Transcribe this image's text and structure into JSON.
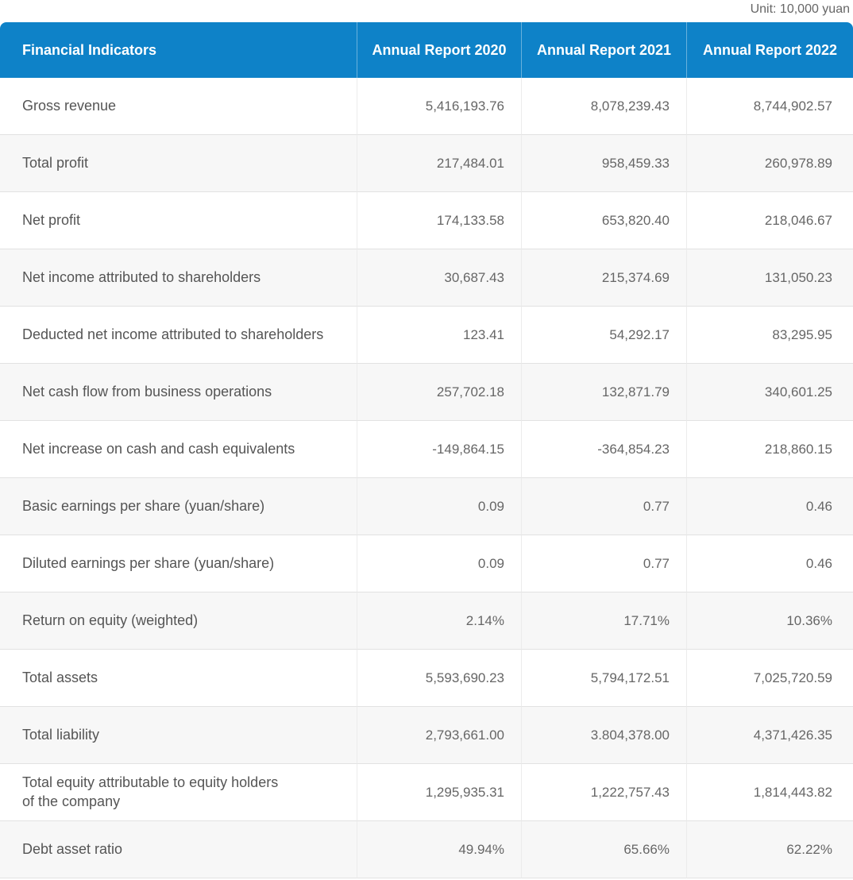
{
  "chart_data": {
    "type": "table",
    "unit_label": "Unit: 10,000 yuan",
    "columns": [
      "Financial Indicators",
      "Annual Report 2020",
      "Annual Report 2021",
      "Annual Report 2022"
    ],
    "rows": [
      {
        "indicator": "Gross revenue",
        "values": [
          "5,416,193.76",
          "8,078,239.43",
          "8,744,902.57"
        ]
      },
      {
        "indicator": "Total profit",
        "values": [
          "217,484.01",
          "958,459.33",
          "260,978.89"
        ]
      },
      {
        "indicator": "Net profit",
        "values": [
          "174,133.58",
          "653,820.40",
          "218,046.67"
        ]
      },
      {
        "indicator": "Net income attributed to shareholders",
        "values": [
          "30,687.43",
          "215,374.69",
          "131,050.23"
        ]
      },
      {
        "indicator": "Deducted net income attributed to shareholders",
        "values": [
          "123.41",
          "54,292.17",
          "83,295.95"
        ]
      },
      {
        "indicator": "Net cash flow from business operations",
        "values": [
          "257,702.18",
          "132,871.79",
          "340,601.25"
        ]
      },
      {
        "indicator": "Net increase on cash and cash equivalents",
        "values": [
          "-149,864.15",
          "-364,854.23",
          "218,860.15"
        ]
      },
      {
        "indicator": "Basic earnings per share (yuan/share)",
        "values": [
          "0.09",
          "0.77",
          "0.46"
        ]
      },
      {
        "indicator": "Diluted earnings per share (yuan/share)",
        "values": [
          "0.09",
          "0.77",
          "0.46"
        ]
      },
      {
        "indicator": "Return on equity (weighted)",
        "values": [
          "2.14%",
          "17.71%",
          "10.36%"
        ]
      },
      {
        "indicator": "Total assets",
        "values": [
          "5,593,690.23",
          "5,794,172.51",
          "7,025,720.59"
        ]
      },
      {
        "indicator": "Total liability",
        "values": [
          "2,793,661.00",
          "3.804,378.00",
          "4,371,426.35"
        ]
      },
      {
        "indicator": "Total equity attributable to equity holders\nof the company",
        "values": [
          "1,295,935.31",
          "1,222,757.43",
          "1,814,443.82"
        ]
      },
      {
        "indicator": "Debt asset ratio",
        "values": [
          "49.94%",
          "65.66%",
          "62.22%"
        ]
      }
    ],
    "layout_hints": {
      "header_centered": true,
      "values_right_aligned": true,
      "alternating_rows": true
    }
  },
  "colors": {
    "header_bg": "#0e82c8",
    "header_text": "#ffffff",
    "row_alt_bg": "#f7f7f7",
    "label_text": "#555555",
    "value_text": "#666666",
    "unit_text": "#666666",
    "row_border": "#e2e2e2"
  }
}
